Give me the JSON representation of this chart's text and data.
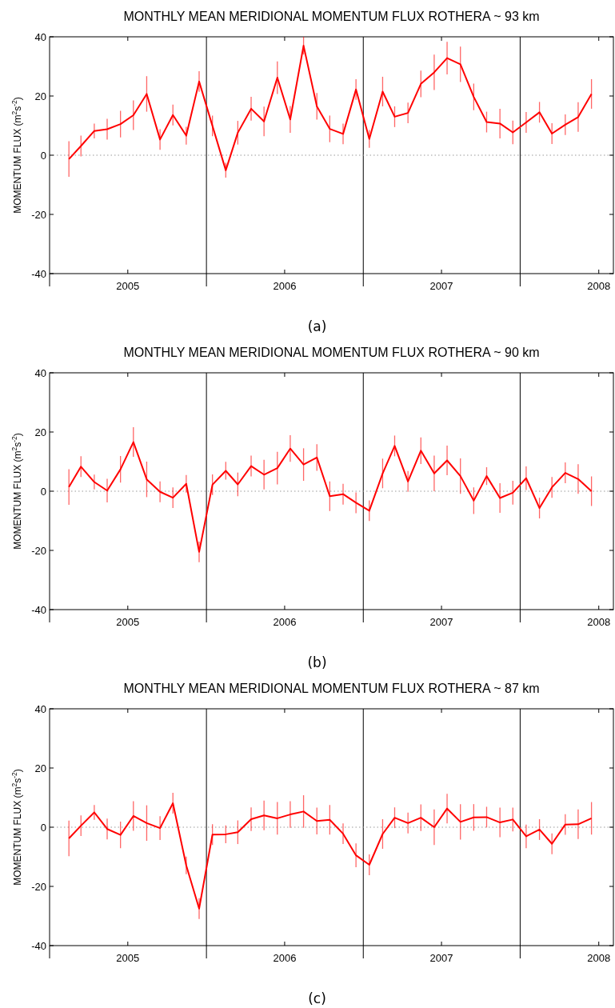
{
  "chart_data": [
    {
      "type": "line",
      "title": "MONTHLY MEAN MERIDIONAL MOMENTUM FLUX ROTHERA ~ 93 km",
      "ylabel": "MOMENTUM FLUX (m$^{2}$s$^{-2}$)",
      "annotations": [
        "(a)"
      ],
      "x": [
        "2005-02-15",
        "2005-03-15",
        "2005-04-15",
        "2005-05-15",
        "2005-06-15",
        "2005-07-15",
        "2005-08-15",
        "2005-09-15",
        "2005-10-15",
        "2005-11-15",
        "2005-12-15",
        "2006-01-15",
        "2006-02-15",
        "2006-03-15",
        "2006-04-15",
        "2006-05-15",
        "2006-06-15",
        "2006-07-15",
        "2006-08-15",
        "2006-09-15",
        "2006-10-15",
        "2006-11-15",
        "2006-12-15",
        "2007-01-15",
        "2007-02-15",
        "2007-03-15",
        "2007-04-15",
        "2007-05-15",
        "2007-06-15",
        "2007-07-15",
        "2007-08-15",
        "2007-09-15",
        "2007-10-15",
        "2007-11-15",
        "2007-12-15",
        "2008-01-15",
        "2008-02-15",
        "2008-03-15",
        "2008-04-15",
        "2008-05-15",
        "2008-06-15"
      ],
      "series": [
        {
          "color": "#ff0000",
          "values": [
            -1.3,
            3.1,
            8.2,
            8.8,
            10.5,
            13.5,
            20.7,
            5.3,
            13.6,
            6.6,
            24.9,
            9.9,
            -5.1,
            7.6,
            15.7,
            11.4,
            26.2,
            12.1,
            37,
            16.5,
            8.9,
            7.2,
            22.2,
            5.5,
            21.5,
            13,
            14.3,
            24.1,
            28,
            32.8,
            30.7,
            19.7,
            11.2,
            10.7,
            7.7,
            11.1,
            14.5,
            7.3,
            10.3,
            12.9,
            20.7
          ],
          "errors": [
            6,
            3.5,
            2.5,
            3.5,
            4.5,
            5,
            6,
            3.5,
            3.5,
            3,
            3.5,
            3.5,
            2.5,
            4,
            4,
            5,
            5.5,
            4.5,
            3,
            4.5,
            4.5,
            3.5,
            3.5,
            3,
            5,
            3.5,
            3.5,
            4.5,
            6,
            5.5,
            6,
            4.5,
            3.5,
            5,
            4,
            3.5,
            3.5,
            3.5,
            3.5,
            5,
            5
          ]
        }
      ],
      "xlim": [
        "2005-01-01",
        "2008-08-05"
      ],
      "xticks": [
        {
          "value": "2005-01-01",
          "label": null
        },
        {
          "value": "2005-07-02",
          "label": "2005"
        },
        {
          "value": "2006-01-01",
          "label": null
        },
        {
          "value": "2006-07-02",
          "label": "2006"
        },
        {
          "value": "2007-01-01",
          "label": null
        },
        {
          "value": "2007-07-02",
          "label": "2007"
        },
        {
          "value": "2008-01-01",
          "label": null
        },
        {
          "value": "2008-07-02",
          "label": "2008"
        }
      ],
      "ylim": [
        -40,
        40
      ],
      "yticks": [
        -40,
        -20,
        0,
        20,
        40
      ],
      "ref_lines": [
        {
          "axis": "x",
          "value": "2006-01-01",
          "color": "#000000"
        },
        {
          "axis": "x",
          "value": "2007-01-01",
          "color": "#000000"
        },
        {
          "axis": "x",
          "value": "2008-01-01",
          "color": "#000000"
        },
        {
          "axis": "y",
          "value": 0,
          "color": "#999999",
          "line_style": "dotted"
        }
      ]
    },
    {
      "type": "line",
      "title": "MONTHLY MEAN MERIDIONAL MOMENTUM FLUX ROTHERA ~ 90 km",
      "ylabel": "MOMENTUM FLUX (m$^{2}$s$^{-2}$)",
      "annotations": [
        "(b)"
      ],
      "x": [
        "2005-02-15",
        "2005-03-15",
        "2005-04-15",
        "2005-05-15",
        "2005-06-15",
        "2005-07-15",
        "2005-08-15",
        "2005-09-15",
        "2005-10-15",
        "2005-11-15",
        "2005-12-15",
        "2006-01-15",
        "2006-02-15",
        "2006-03-15",
        "2006-04-15",
        "2006-05-15",
        "2006-06-15",
        "2006-07-15",
        "2006-08-15",
        "2006-09-15",
        "2006-10-15",
        "2006-11-15",
        "2006-12-15",
        "2007-01-15",
        "2007-02-15",
        "2007-03-15",
        "2007-04-15",
        "2007-05-15",
        "2007-06-15",
        "2007-07-15",
        "2007-08-15",
        "2007-09-15",
        "2007-10-15",
        "2007-11-15",
        "2007-12-15",
        "2008-01-15",
        "2008-02-15",
        "2008-03-15",
        "2008-04-15",
        "2008-05-15",
        "2008-06-15"
      ],
      "series": [
        {
          "color": "#ff0000",
          "values": [
            1.4,
            8.3,
            3.1,
            0.2,
            7.4,
            16.6,
            4,
            -0.2,
            -2.2,
            2.5,
            -20.5,
            2.2,
            6.9,
            2.3,
            8.5,
            5.6,
            7.8,
            14.4,
            9,
            11.4,
            -1.7,
            -1,
            -3.9,
            -6.6,
            6,
            15.3,
            3.3,
            13.7,
            6,
            10.4,
            5.1,
            -3.2,
            5.1,
            -2.3,
            -0.5,
            4.4,
            -5.7,
            1.3,
            6.2,
            4.1,
            0
          ],
          "errors": [
            6,
            3.5,
            2.5,
            4,
            4.5,
            5,
            6,
            3.5,
            3.5,
            3,
            3.5,
            3.5,
            3,
            4,
            3.5,
            5,
            5.5,
            4.5,
            5.5,
            4.5,
            5,
            3.5,
            3.5,
            3.5,
            5,
            3.5,
            3.5,
            4.5,
            6,
            5,
            6,
            4.5,
            3,
            5,
            4,
            4,
            3.5,
            3.5,
            3.5,
            5,
            5
          ]
        }
      ],
      "xlim": [
        "2005-01-01",
        "2008-08-05"
      ],
      "xticks": [
        {
          "value": "2005-01-01",
          "label": null
        },
        {
          "value": "2005-07-02",
          "label": "2005"
        },
        {
          "value": "2006-01-01",
          "label": null
        },
        {
          "value": "2006-07-02",
          "label": "2006"
        },
        {
          "value": "2007-01-01",
          "label": null
        },
        {
          "value": "2007-07-02",
          "label": "2007"
        },
        {
          "value": "2008-01-01",
          "label": null
        },
        {
          "value": "2008-07-02",
          "label": "2008"
        }
      ],
      "ylim": [
        -40,
        40
      ],
      "yticks": [
        -40,
        -20,
        0,
        20,
        40
      ],
      "ref_lines": [
        {
          "axis": "x",
          "value": "2006-01-01",
          "color": "#000000"
        },
        {
          "axis": "x",
          "value": "2007-01-01",
          "color": "#000000"
        },
        {
          "axis": "x",
          "value": "2008-01-01",
          "color": "#000000"
        },
        {
          "axis": "y",
          "value": 0,
          "color": "#999999",
          "line_style": "dotted"
        }
      ]
    },
    {
      "type": "line",
      "title": "MONTHLY MEAN MERIDIONAL MOMENTUM FLUX ROTHERA ~ 87 km",
      "ylabel": "MOMENTUM FLUX (m$^{2}$s$^{-2}$)",
      "annotations": [
        "(c)"
      ],
      "x": [
        "2005-02-15",
        "2005-03-15",
        "2005-04-15",
        "2005-05-15",
        "2005-06-15",
        "2005-07-15",
        "2005-08-15",
        "2005-09-15",
        "2005-10-15",
        "2005-11-15",
        "2005-12-15",
        "2006-01-15",
        "2006-02-15",
        "2006-03-15",
        "2006-04-15",
        "2006-05-15",
        "2006-06-15",
        "2006-07-15",
        "2006-08-15",
        "2006-09-15",
        "2006-10-15",
        "2006-11-15",
        "2006-12-15",
        "2007-01-15",
        "2007-02-15",
        "2007-03-15",
        "2007-04-15",
        "2007-05-15",
        "2007-06-15",
        "2007-07-15",
        "2007-08-15",
        "2007-09-15",
        "2007-10-15",
        "2007-11-15",
        "2007-12-15",
        "2008-01-15",
        "2008-02-15",
        "2008-03-15",
        "2008-04-15",
        "2008-05-15",
        "2008-06-15"
      ],
      "series": [
        {
          "color": "#ff0000",
          "values": [
            -3.8,
            0.5,
            5,
            -0.6,
            -2.6,
            3.8,
            1.4,
            -0.3,
            8.1,
            -12.9,
            -27.5,
            -2.5,
            -2.4,
            -1.7,
            2.7,
            4,
            3,
            4.3,
            5.3,
            2.1,
            2.5,
            -2.2,
            -9.5,
            -12.7,
            -2.3,
            3.2,
            1.4,
            3.2,
            0,
            6.3,
            1.8,
            3.3,
            3.4,
            1.6,
            2.6,
            -3.1,
            -0.8,
            -5.6,
            0.9,
            1,
            3
          ],
          "errors": [
            6,
            3.5,
            2.5,
            3.5,
            4.5,
            5,
            6,
            4,
            3.5,
            3,
            3.5,
            3.5,
            3,
            4,
            4,
            5,
            5.5,
            4.5,
            5.5,
            4.5,
            5,
            3.5,
            4,
            3.5,
            5,
            3.5,
            3.5,
            4.5,
            6,
            5,
            6,
            4.5,
            3.5,
            5,
            4,
            4,
            3.5,
            3.5,
            3.5,
            5,
            5.5
          ]
        }
      ],
      "xlim": [
        "2005-01-01",
        "2008-08-05"
      ],
      "xticks": [
        {
          "value": "2005-01-01",
          "label": null
        },
        {
          "value": "2005-07-02",
          "label": "2005"
        },
        {
          "value": "2006-01-01",
          "label": null
        },
        {
          "value": "2006-07-02",
          "label": "2006"
        },
        {
          "value": "2007-01-01",
          "label": null
        },
        {
          "value": "2007-07-02",
          "label": "2007"
        },
        {
          "value": "2008-01-01",
          "label": null
        },
        {
          "value": "2008-07-02",
          "label": "2008"
        }
      ],
      "ylim": [
        -40,
        40
      ],
      "yticks": [
        -40,
        -20,
        0,
        20,
        40
      ],
      "ref_lines": [
        {
          "axis": "x",
          "value": "2006-01-01",
          "color": "#000000"
        },
        {
          "axis": "x",
          "value": "2007-01-01",
          "color": "#000000"
        },
        {
          "axis": "x",
          "value": "2008-01-01",
          "color": "#000000"
        },
        {
          "axis": "y",
          "value": 0,
          "color": "#999999",
          "line_style": "dotted"
        }
      ]
    }
  ]
}
